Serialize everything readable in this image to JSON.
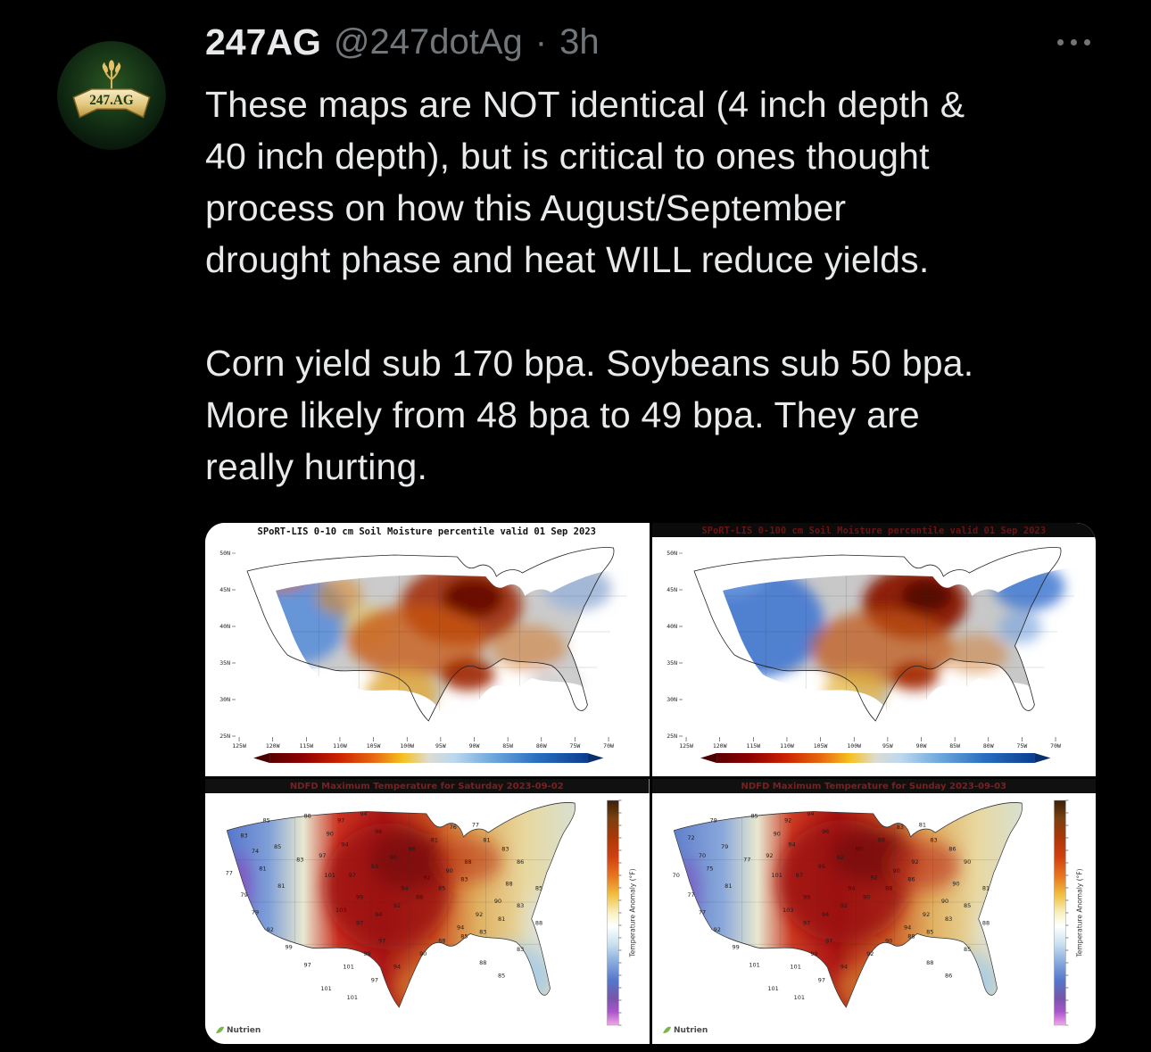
{
  "colors": {
    "background": "#000000",
    "text_primary": "#e7e9ea",
    "text_secondary": "#71767b",
    "dry_red": "#8a1505",
    "wet_blue": "#2a6fc0"
  },
  "tweet": {
    "author": "247AG",
    "handle": "@247dotAg",
    "separator": "·",
    "time": "3h",
    "avatar_text": "247.AG",
    "more_icon": "more-options",
    "paragraphs": [
      [
        "These maps are NOT identical (4 inch depth &",
        "40 inch depth), but is critical to ones thought",
        "process on how this August/September",
        "drought phase and heat WILL reduce yields."
      ],
      [
        "Corn yield sub 170 bpa. Soybeans sub 50 bpa.",
        "More likely from 48 bpa to 49 bpa. They are",
        "really hurting."
      ]
    ]
  },
  "media": {
    "soil_left": {
      "title": "SPoRT-LIS 0-10 cm Soil Moisture percentile valid 01 Sep 2023",
      "y_ticks": [
        "50N",
        "45N",
        "40N",
        "35N",
        "30N",
        "25N"
      ],
      "x_ticks": [
        "125W",
        "120W",
        "115W",
        "110W",
        "105W",
        "100W",
        "95W",
        "90W",
        "85W",
        "80W",
        "75W",
        "70W"
      ]
    },
    "soil_right": {
      "title": "SPoRT-LIS 0-100 cm Soil Moisture percentile valid 01 Sep 2023",
      "y_ticks": [
        "50N",
        "45N",
        "40N",
        "35N",
        "30N",
        "25N"
      ],
      "x_ticks": [
        "125W",
        "120W",
        "115W",
        "110W",
        "105W",
        "100W",
        "95W",
        "90W",
        "85W",
        "80W",
        "75W",
        "70W"
      ]
    },
    "temp_left": {
      "title": "NDFD Maximum Temperature for Saturday 2023-09-02",
      "colorbar_label": "Temperature Anomaly (°F)",
      "brand": "Nutrien",
      "temps": [
        [
          85,
          14,
          8
        ],
        [
          88,
          25,
          6
        ],
        [
          97,
          34,
          8
        ],
        [
          94,
          40,
          5
        ],
        [
          96,
          44,
          13
        ],
        [
          90,
          31,
          14
        ],
        [
          83,
          8,
          15
        ],
        [
          74,
          11,
          22
        ],
        [
          85,
          17,
          20
        ],
        [
          83,
          23,
          26
        ],
        [
          81,
          13,
          30
        ],
        [
          77,
          4,
          32
        ],
        [
          79,
          8,
          42
        ],
        [
          81,
          18,
          38
        ],
        [
          97,
          29,
          24
        ],
        [
          94,
          35,
          19
        ],
        [
          101,
          31,
          33
        ],
        [
          97,
          37,
          33
        ],
        [
          93,
          43,
          29
        ],
        [
          90,
          48,
          25
        ],
        [
          86,
          53,
          21
        ],
        [
          81,
          59,
          17
        ],
        [
          76,
          64,
          11
        ],
        [
          77,
          70,
          10
        ],
        [
          81,
          73,
          17
        ],
        [
          83,
          78,
          21
        ],
        [
          86,
          82,
          27
        ],
        [
          88,
          68,
          27
        ],
        [
          90,
          63,
          31
        ],
        [
          92,
          57,
          34
        ],
        [
          94,
          51,
          39
        ],
        [
          99,
          39,
          43
        ],
        [
          103,
          34,
          49
        ],
        [
          97,
          39,
          55
        ],
        [
          94,
          44,
          51
        ],
        [
          92,
          49,
          47
        ],
        [
          88,
          55,
          43
        ],
        [
          85,
          61,
          39
        ],
        [
          83,
          67,
          35
        ],
        [
          88,
          79,
          37
        ],
        [
          90,
          76,
          45
        ],
        [
          92,
          71,
          51
        ],
        [
          94,
          66,
          57
        ],
        [
          97,
          45,
          63
        ],
        [
          99,
          41,
          69
        ],
        [
          101,
          36,
          75
        ],
        [
          97,
          43,
          81
        ],
        [
          94,
          49,
          75
        ],
        [
          90,
          56,
          69
        ],
        [
          88,
          61,
          63
        ],
        [
          85,
          67,
          61
        ],
        [
          83,
          72,
          59
        ],
        [
          81,
          77,
          53
        ],
        [
          83,
          82,
          47
        ],
        [
          85,
          87,
          39
        ],
        [
          79,
          11,
          50
        ],
        [
          92,
          15,
          58
        ],
        [
          99,
          20,
          66
        ],
        [
          97,
          25,
          74
        ],
        [
          101,
          30,
          85
        ],
        [
          101,
          37,
          89
        ],
        [
          88,
          72,
          73
        ],
        [
          85,
          77,
          79
        ],
        [
          83,
          82,
          67
        ],
        [
          88,
          87,
          55
        ]
      ]
    },
    "temp_right": {
      "title": "NDFD Maximum Temperature for Sunday 2023-09-03",
      "colorbar_label": "Temperature Anomaly (°F)",
      "brand": "Nutrien",
      "temps": [
        [
          79,
          14,
          8
        ],
        [
          85,
          25,
          6
        ],
        [
          92,
          34,
          8
        ],
        [
          94,
          40,
          5
        ],
        [
          96,
          44,
          13
        ],
        [
          90,
          31,
          14
        ],
        [
          72,
          8,
          16
        ],
        [
          70,
          11,
          24
        ],
        [
          79,
          17,
          20
        ],
        [
          77,
          23,
          26
        ],
        [
          75,
          13,
          30
        ],
        [
          70,
          4,
          33
        ],
        [
          77,
          8,
          42
        ],
        [
          81,
          18,
          38
        ],
        [
          92,
          29,
          24
        ],
        [
          94,
          35,
          19
        ],
        [
          101,
          31,
          33
        ],
        [
          97,
          37,
          33
        ],
        [
          95,
          43,
          29
        ],
        [
          92,
          48,
          25
        ],
        [
          90,
          53,
          21
        ],
        [
          88,
          59,
          17
        ],
        [
          83,
          64,
          11
        ],
        [
          81,
          70,
          10
        ],
        [
          83,
          73,
          17
        ],
        [
          86,
          78,
          21
        ],
        [
          90,
          82,
          27
        ],
        [
          92,
          68,
          27
        ],
        [
          90,
          63,
          31
        ],
        [
          92,
          57,
          34
        ],
        [
          94,
          51,
          39
        ],
        [
          99,
          39,
          43
        ],
        [
          103,
          34,
          49
        ],
        [
          97,
          39,
          55
        ],
        [
          94,
          44,
          51
        ],
        [
          92,
          49,
          47
        ],
        [
          90,
          55,
          43
        ],
        [
          88,
          61,
          39
        ],
        [
          86,
          67,
          35
        ],
        [
          90,
          79,
          37
        ],
        [
          90,
          76,
          45
        ],
        [
          92,
          71,
          51
        ],
        [
          94,
          66,
          57
        ],
        [
          97,
          45,
          63
        ],
        [
          99,
          41,
          69
        ],
        [
          101,
          36,
          75
        ],
        [
          97,
          43,
          81
        ],
        [
          94,
          49,
          75
        ],
        [
          92,
          56,
          69
        ],
        [
          90,
          61,
          63
        ],
        [
          88,
          67,
          61
        ],
        [
          85,
          72,
          59
        ],
        [
          83,
          77,
          53
        ],
        [
          85,
          82,
          47
        ],
        [
          81,
          87,
          39
        ],
        [
          77,
          11,
          50
        ],
        [
          92,
          15,
          58
        ],
        [
          99,
          20,
          66
        ],
        [
          101,
          25,
          74
        ],
        [
          101,
          30,
          85
        ],
        [
          101,
          37,
          89
        ],
        [
          88,
          72,
          73
        ],
        [
          86,
          77,
          79
        ],
        [
          85,
          82,
          67
        ],
        [
          88,
          87,
          55
        ]
      ]
    }
  }
}
